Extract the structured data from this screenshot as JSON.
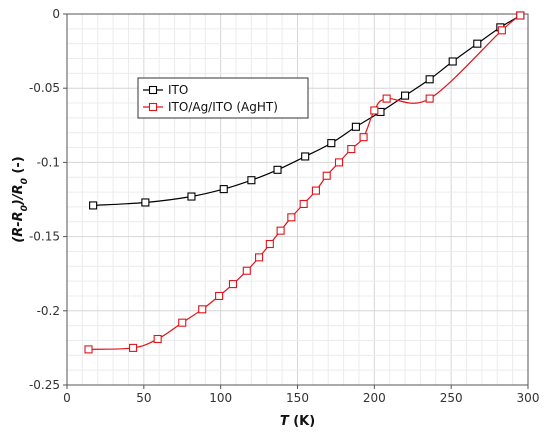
{
  "chart_data": {
    "type": "line",
    "title": "",
    "xlabel_main": "T",
    "xlabel_unit": " (K)",
    "ylabel_parts": [
      {
        "t": "(R-R",
        "sub": false
      },
      {
        "t": "0",
        "sub": true
      },
      {
        "t": ")/R",
        "sub": false
      },
      {
        "t": "0",
        "sub": true
      },
      {
        "t": " (-)",
        "sub": false
      }
    ],
    "xlim": [
      0,
      300
    ],
    "ylim": [
      -0.25,
      0
    ],
    "xticks": [
      0,
      50,
      100,
      150,
      200,
      250,
      300
    ],
    "xtick_labels": [
      "0",
      "50",
      "100",
      "150",
      "200",
      "250",
      "300"
    ],
    "yticks": [
      -0.25,
      -0.2,
      -0.15,
      -0.1,
      -0.05,
      0
    ],
    "ytick_labels": [
      "-0.25",
      "-0.2",
      "-0.15",
      "-0.1",
      "-0.05",
      "0"
    ],
    "grid": true,
    "legend_position": "top-left",
    "series": [
      {
        "name": "ITO",
        "color": "#000000",
        "marker": "hollow-square",
        "x": [
          17,
          51,
          81,
          102,
          120,
          137,
          155,
          172,
          188,
          204,
          220,
          236,
          251,
          267,
          282,
          295
        ],
        "y": [
          -0.129,
          -0.127,
          -0.123,
          -0.118,
          -0.112,
          -0.105,
          -0.096,
          -0.087,
          -0.076,
          -0.066,
          -0.055,
          -0.044,
          -0.032,
          -0.02,
          -0.009,
          -0.001
        ]
      },
      {
        "name": "ITO/Ag/ITO (AgHT)",
        "color": "#e0141a",
        "marker": "hollow-square",
        "x": [
          14,
          43,
          59,
          75,
          88,
          99,
          108,
          117,
          125,
          132,
          139,
          146,
          154,
          162,
          169,
          177,
          185,
          193,
          200,
          208,
          236,
          283,
          295
        ],
        "y": [
          -0.226,
          -0.225,
          -0.219,
          -0.208,
          -0.199,
          -0.19,
          -0.182,
          -0.173,
          -0.164,
          -0.155,
          -0.146,
          -0.137,
          -0.128,
          -0.119,
          -0.109,
          -0.1,
          -0.091,
          -0.083,
          -0.065,
          -0.057,
          -0.057,
          -0.011,
          -0.001
        ]
      }
    ]
  }
}
